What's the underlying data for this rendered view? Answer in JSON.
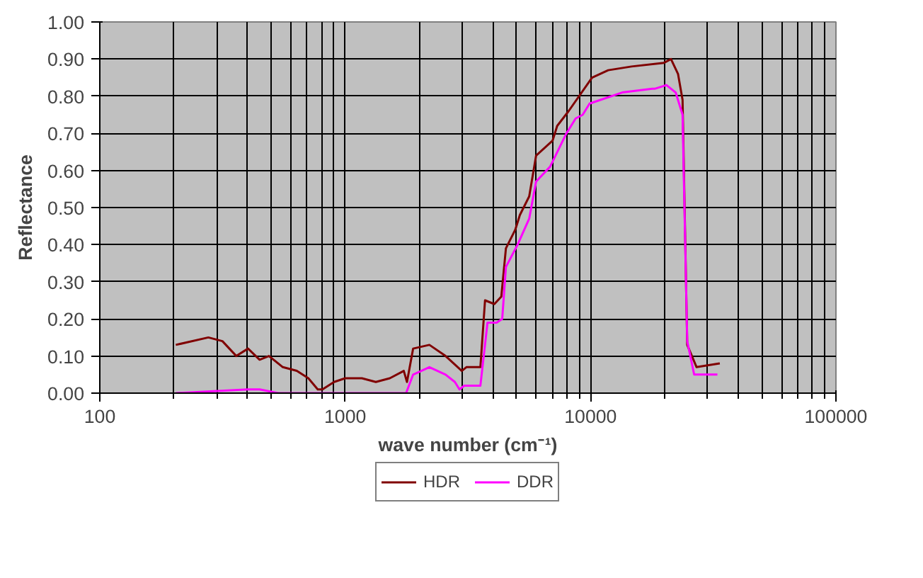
{
  "chart_data": {
    "type": "line",
    "xlabel": "wave number (cm⁻¹)",
    "ylabel": "Reflectance",
    "log": "x",
    "xlim": [
      100,
      100000
    ],
    "xticks": [
      100,
      1000,
      10000,
      100000
    ],
    "ylim": [
      0,
      1
    ],
    "yticks": [
      {
        "value": 0,
        "label": "0.00"
      },
      {
        "value": 0.1,
        "label": "0.10"
      },
      {
        "value": 0.2,
        "label": "0.20"
      },
      {
        "value": 0.3,
        "label": "0.30"
      },
      {
        "value": 0.4,
        "label": "0.40"
      },
      {
        "value": 0.5,
        "label": "0.50"
      },
      {
        "value": 0.6,
        "label": "0.60"
      },
      {
        "value": 0.7,
        "label": "0.70"
      },
      {
        "value": 0.8,
        "label": "0.80"
      },
      {
        "value": 0.9,
        "label": "0.90"
      },
      {
        "value": 1,
        "label": "1.00"
      }
    ],
    "grid": true,
    "legend": "bottom",
    "marker": "none",
    "line_style": "solid",
    "series": [
      {
        "name": "HDR",
        "color": "#800000",
        "x": [
          204,
          277,
          316,
          360,
          402,
          448,
          489,
          557,
          635,
          708,
          773,
          808,
          901,
          1000,
          1170,
          1333,
          1520,
          1733,
          1786,
          1892,
          2204,
          2565,
          2987,
          3119,
          3556,
          3715,
          4055,
          4328,
          4519,
          4932,
          5152,
          5623,
          5998,
          6998,
          7311,
          8143,
          10140,
          11800,
          14690,
          19920,
          21270,
          22720,
          23710,
          24770,
          27040,
          33630
        ],
        "values": [
          0.13,
          0.15,
          0.14,
          0.1,
          0.12,
          0.09,
          0.1,
          0.07,
          0.06,
          0.04,
          0.01,
          0.01,
          0.03,
          0.04,
          0.04,
          0.03,
          0.04,
          0.06,
          0.03,
          0.12,
          0.13,
          0.1,
          0.06,
          0.07,
          0.07,
          0.25,
          0.24,
          0.26,
          0.39,
          0.44,
          0.48,
          0.53,
          0.64,
          0.68,
          0.72,
          0.76,
          0.85,
          0.87,
          0.88,
          0.89,
          0.9,
          0.86,
          0.79,
          0.13,
          0.07,
          0.08
        ]
      },
      {
        "name": "DDR",
        "color": "#ff00ff",
        "x": [
          204,
          402,
          448,
          534,
          901,
          1771,
          1892,
          2204,
          2565,
          2799,
          2923,
          3055,
          3556,
          3802,
          4140,
          4365,
          4519,
          5043,
          5623,
          5998,
          6839,
          7976,
          8695,
          9290,
          9908,
          13450,
          17860,
          18250,
          20380,
          22230,
          23710,
          24770,
          26440,
          32880
        ],
        "values": [
          0.0,
          0.01,
          0.01,
          0.0,
          0.0,
          0.0,
          0.05,
          0.07,
          0.05,
          0.03,
          0.01,
          0.02,
          0.02,
          0.19,
          0.19,
          0.2,
          0.34,
          0.4,
          0.47,
          0.57,
          0.61,
          0.7,
          0.74,
          0.75,
          0.78,
          0.81,
          0.82,
          0.82,
          0.83,
          0.81,
          0.75,
          0.14,
          0.05,
          0.05
        ]
      }
    ]
  }
}
